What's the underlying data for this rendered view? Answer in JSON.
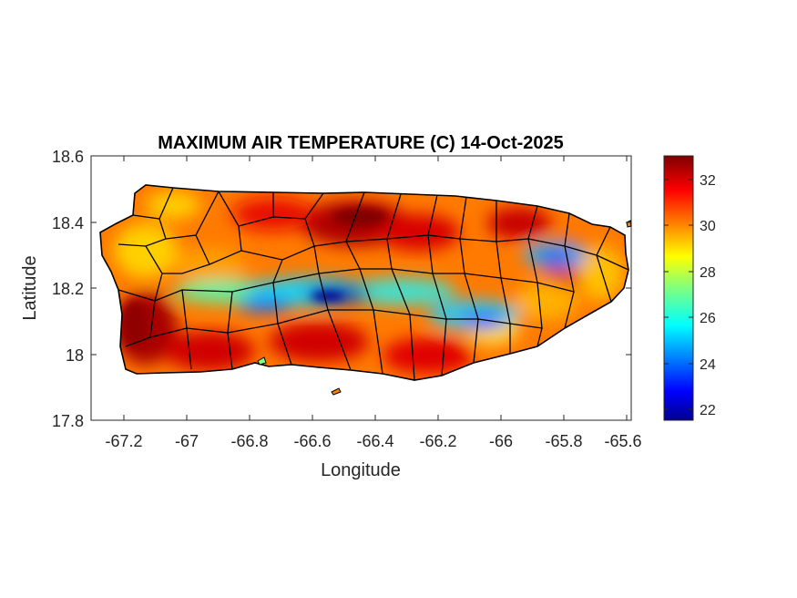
{
  "title": "MAXIMUM AIR TEMPERATURE (C) 14-Oct-2025",
  "xlabel": "Longitude",
  "ylabel": "Latitude",
  "x_ticks": [
    "-67.2",
    "-67",
    "-66.8",
    "-66.6",
    "-66.4",
    "-66.2",
    "-66",
    "-65.8",
    "-65.6"
  ],
  "y_ticks": [
    "18.6",
    "18.4",
    "18.2",
    "18",
    "17.8"
  ],
  "colorbar": {
    "ticks": [
      "32",
      "30",
      "28",
      "26",
      "24",
      "22"
    ],
    "range": [
      21.5,
      33
    ],
    "colormap": "jet"
  },
  "map_data": {
    "region": "Puerto Rico",
    "variable": "maximum air temperature",
    "units": "C",
    "date": "14-Oct-2025",
    "lon_range": [
      -67.3,
      -65.58
    ],
    "lat_range": [
      17.8,
      18.6
    ],
    "colors": {
      "hot": "#c00000",
      "warm": "#ff6000",
      "mild": "#ffd000",
      "cool": "#40e0c0",
      "cold": "#0000c0",
      "boundary": "#000000"
    }
  }
}
